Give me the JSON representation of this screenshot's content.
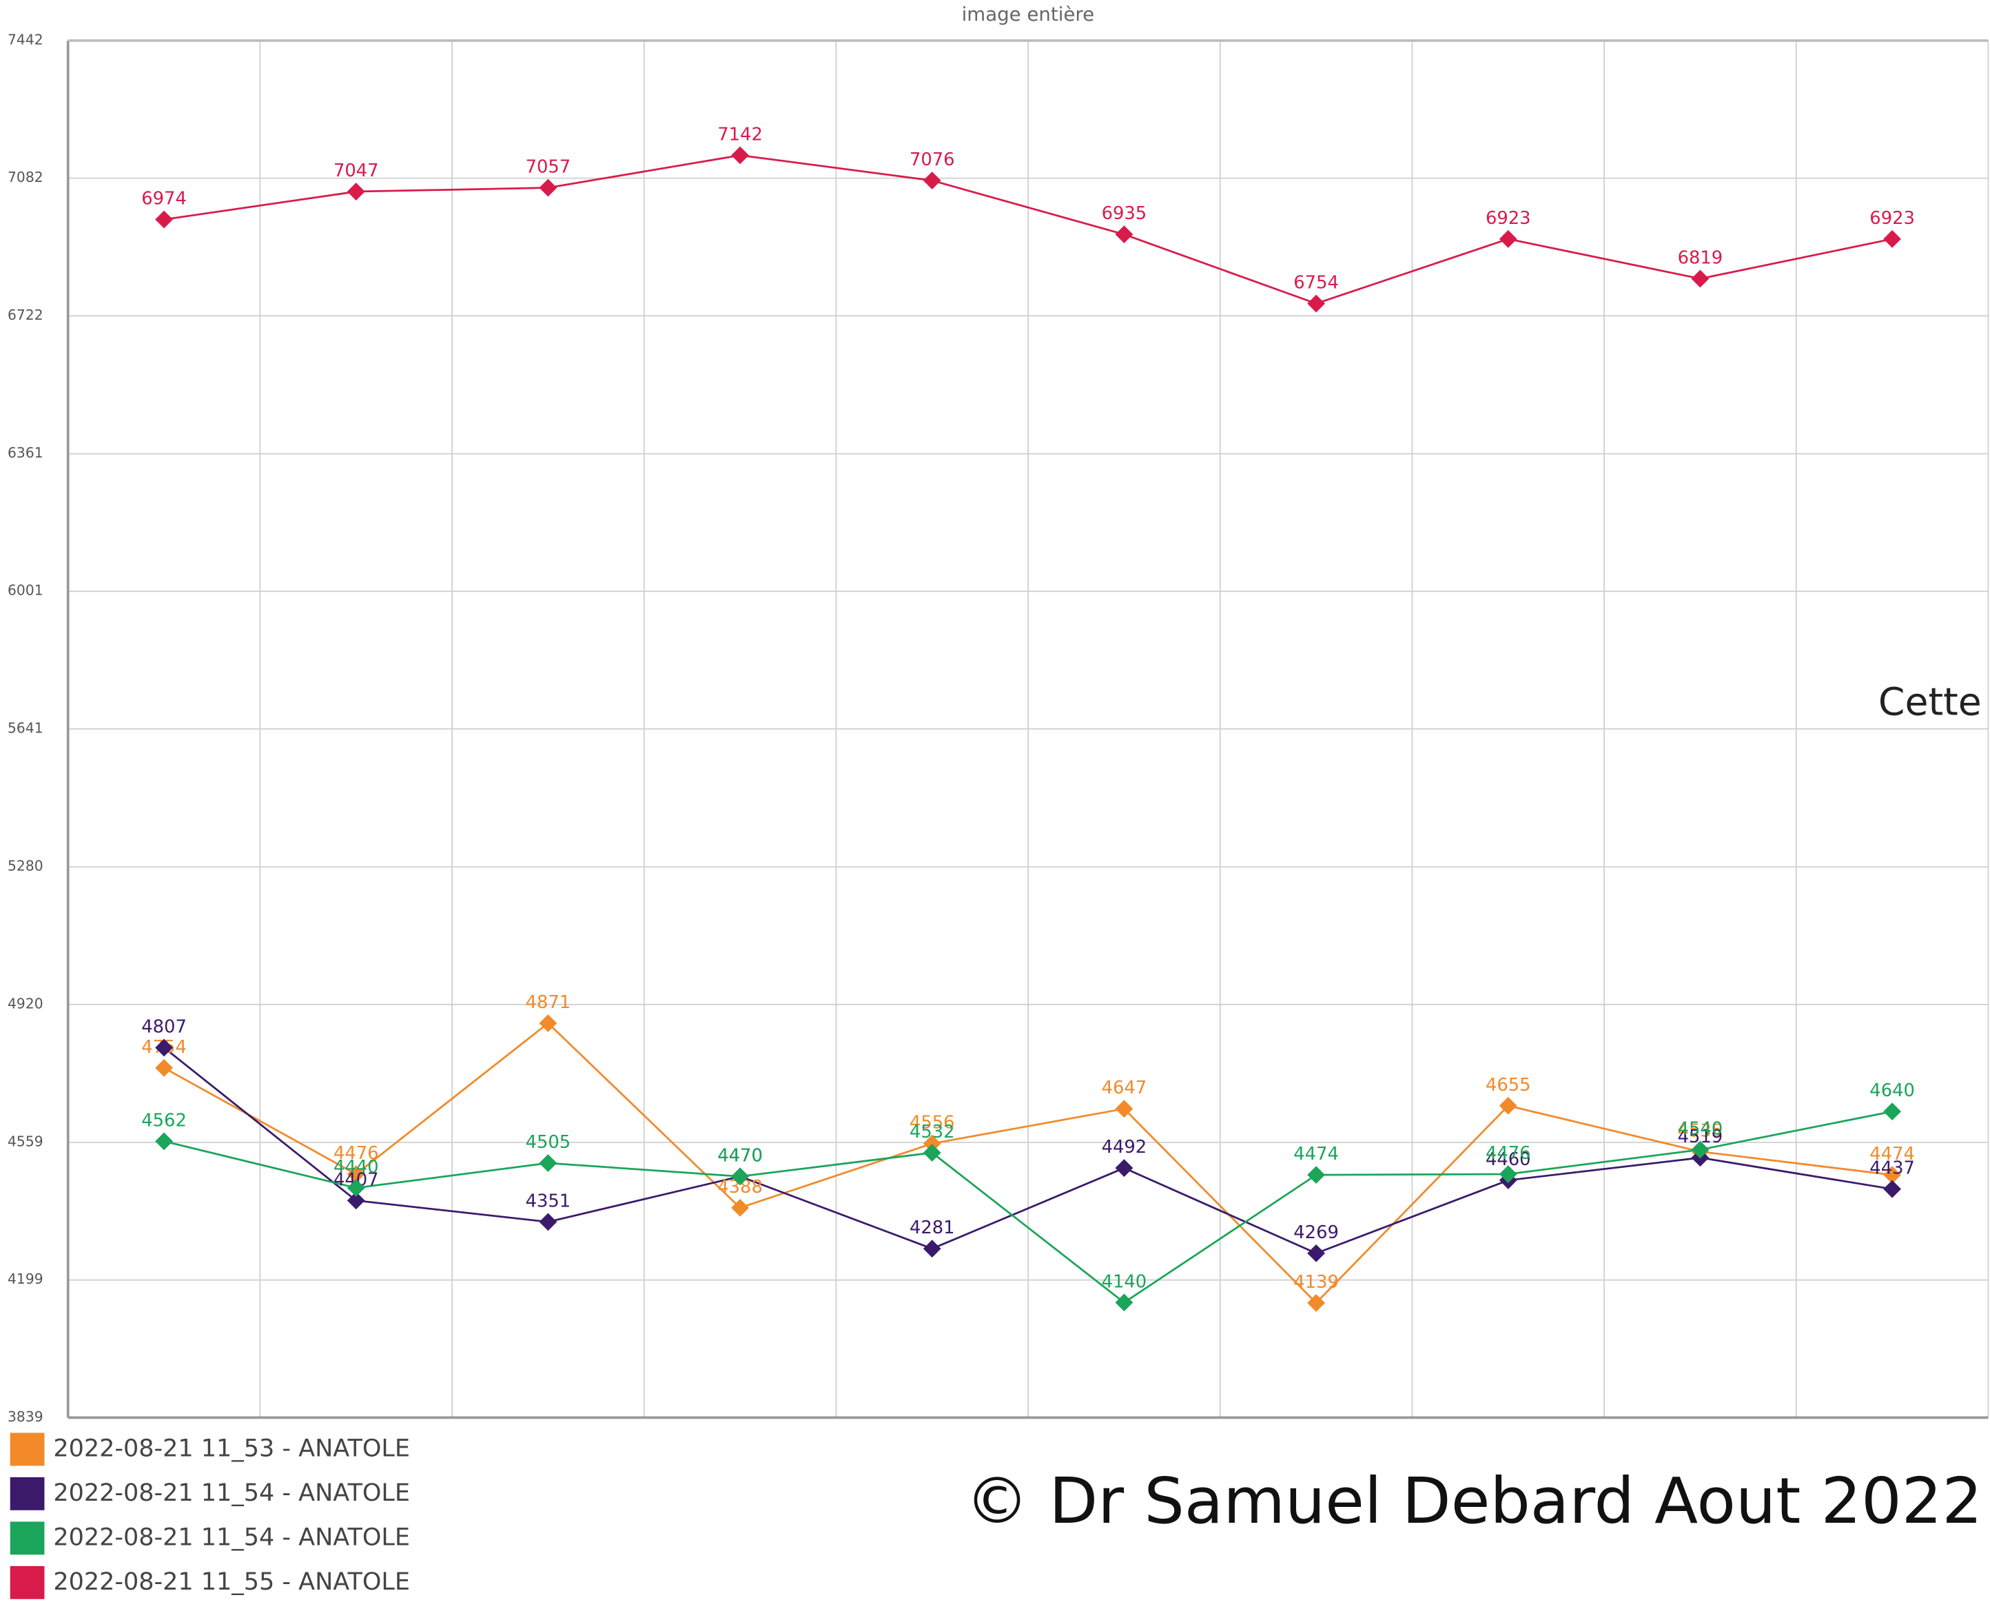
{
  "chart_data": {
    "type": "line",
    "title": "image entière",
    "categories": [
      null,
      null,
      null,
      null,
      null,
      null,
      null,
      null,
      null,
      null
    ],
    "series": [
      {
        "name": "2022-08-21 11_53 - ANATOLE",
        "color": "#f28a2a",
        "values": [
          4754,
          4476,
          4871,
          4388,
          4556,
          4647,
          4139,
          4655,
          4535,
          4474
        ]
      },
      {
        "name": "2022-08-21 11_54 - ANATOLE",
        "color": "#3b1a6b",
        "values": [
          4807,
          4407,
          4351,
          4470,
          4281,
          4492,
          4269,
          4460,
          4519,
          4437
        ]
      },
      {
        "name": "2022-08-21 11_54 - ANATOLE",
        "color": "#1aa55a",
        "values": [
          4562,
          4440,
          4505,
          4470,
          4532,
          4140,
          4474,
          4476,
          4540,
          4640
        ]
      },
      {
        "name": "2022-08-21 11_55 - ANATOLE",
        "color": "#d81b4a",
        "values": [
          6974,
          7047,
          7057,
          7142,
          7076,
          6935,
          6754,
          6923,
          6819,
          6923
        ]
      }
    ],
    "ylim": [
      3839,
      7442
    ],
    "yticks": [
      3839,
      4199,
      4559,
      4920,
      5280,
      5641,
      6001,
      6361,
      6722,
      7082,
      7442
    ],
    "grid": true,
    "annotations": [
      "Cette",
      "© Dr Samuel Debard Aout 2022"
    ]
  }
}
